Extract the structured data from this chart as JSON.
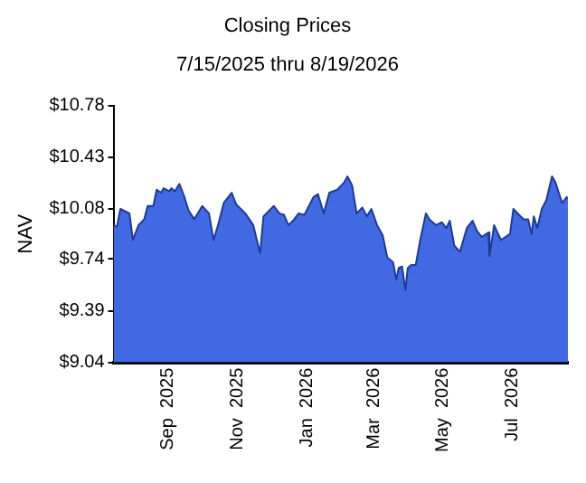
{
  "chart_data": {
    "type": "area",
    "title": "Closing Prices",
    "subtitle": "7/15/2025 thru 8/19/2026",
    "ylabel": "NAV",
    "xlim": [
      "2025-07-15",
      "2026-08-19"
    ],
    "xticks": [
      {
        "value": "2025-09-01",
        "label": "Sep  2025"
      },
      {
        "value": "2025-11-01",
        "label": "Nov  2025"
      },
      {
        "value": "2026-01-01",
        "label": "Jan  2026"
      },
      {
        "value": "2026-03-01",
        "label": "Mar  2026"
      },
      {
        "value": "2026-05-01",
        "label": "May  2026"
      },
      {
        "value": "2026-07-01",
        "label": "Jul  2026"
      }
    ],
    "ylim": [
      9.04,
      10.78
    ],
    "yticks": [
      {
        "value": 9.04,
        "label": "$9.04"
      },
      {
        "value": 9.39,
        "label": "$9.39"
      },
      {
        "value": 9.74,
        "label": "$9.74"
      },
      {
        "value": 10.08,
        "label": "$10.08"
      },
      {
        "value": 10.43,
        "label": "$10.43"
      },
      {
        "value": 10.78,
        "label": "$10.78"
      }
    ],
    "grid": false,
    "legend": false,
    "marker": "none",
    "series": [
      {
        "color": "#4169e1",
        "x": [
          "2025-07-15",
          "2025-07-18",
          "2025-07-21",
          "2025-07-29",
          "2025-08-01",
          "2025-08-06",
          "2025-08-11",
          "2025-08-14",
          "2025-08-19",
          "2025-08-22",
          "2025-08-26",
          "2025-08-28",
          "2025-09-02",
          "2025-09-04",
          "2025-09-07",
          "2025-09-11",
          "2025-09-15",
          "2025-09-19",
          "2025-09-24",
          "2025-10-01",
          "2025-10-07",
          "2025-10-11",
          "2025-10-15",
          "2025-10-20",
          "2025-10-27",
          "2025-10-31",
          "2025-11-08",
          "2025-11-15",
          "2025-11-21",
          "2025-11-24",
          "2025-12-03",
          "2025-12-08",
          "2025-12-12",
          "2025-12-16",
          "2025-12-20",
          "2025-12-25",
          "2025-12-30",
          "2026-01-07",
          "2026-01-11",
          "2026-01-16",
          "2026-01-21",
          "2026-01-28",
          "2026-02-03",
          "2026-02-06",
          "2026-02-10",
          "2026-02-14",
          "2026-02-19",
          "2026-02-23",
          "2026-02-27",
          "2026-03-04",
          "2026-03-09",
          "2026-03-13",
          "2026-03-18",
          "2026-03-21",
          "2026-03-23",
          "2026-03-26",
          "2026-03-29",
          "2026-03-31",
          "2026-04-03",
          "2026-04-07",
          "2026-04-11",
          "2026-04-16",
          "2026-04-19",
          "2026-04-25",
          "2026-04-30",
          "2026-05-04",
          "2026-05-07",
          "2026-05-11",
          "2026-05-16",
          "2026-05-22",
          "2026-05-27",
          "2026-05-31",
          "2026-06-04",
          "2026-06-10",
          "2026-06-11",
          "2026-06-15",
          "2026-06-21",
          "2026-06-25",
          "2026-06-29",
          "2026-07-02",
          "2026-07-07",
          "2026-07-11",
          "2026-07-15",
          "2026-07-18",
          "2026-07-20",
          "2026-07-23",
          "2026-07-27",
          "2026-07-31",
          "2026-08-05",
          "2026-08-08",
          "2026-08-14",
          "2026-08-18",
          "2026-08-19"
        ],
        "values": [
          9.97,
          9.96,
          10.08,
          10.05,
          9.87,
          9.97,
          10.01,
          10.1,
          10.1,
          10.21,
          10.19,
          10.22,
          10.2,
          10.22,
          10.2,
          10.25,
          10.17,
          10.07,
          10.01,
          10.1,
          10.05,
          9.87,
          9.97,
          10.12,
          10.19,
          10.11,
          10.05,
          9.97,
          9.78,
          10.03,
          10.1,
          10.05,
          10.04,
          9.97,
          10.0,
          10.05,
          10.04,
          10.16,
          10.18,
          10.05,
          10.19,
          10.21,
          10.26,
          10.3,
          10.24,
          10.05,
          10.09,
          10.03,
          10.08,
          9.97,
          9.9,
          9.75,
          9.72,
          9.6,
          9.68,
          9.69,
          9.53,
          9.68,
          9.7,
          9.7,
          9.87,
          10.05,
          10.01,
          9.97,
          9.99,
          9.95,
          10.0,
          9.83,
          9.79,
          9.95,
          10.0,
          9.93,
          9.89,
          9.92,
          9.76,
          9.97,
          9.87,
          9.89,
          9.91,
          10.08,
          10.04,
          10.01,
          10.01,
          9.91,
          10.03,
          9.95,
          10.08,
          10.14,
          10.3,
          10.26,
          10.12,
          10.16,
          10.15
        ]
      }
    ]
  }
}
